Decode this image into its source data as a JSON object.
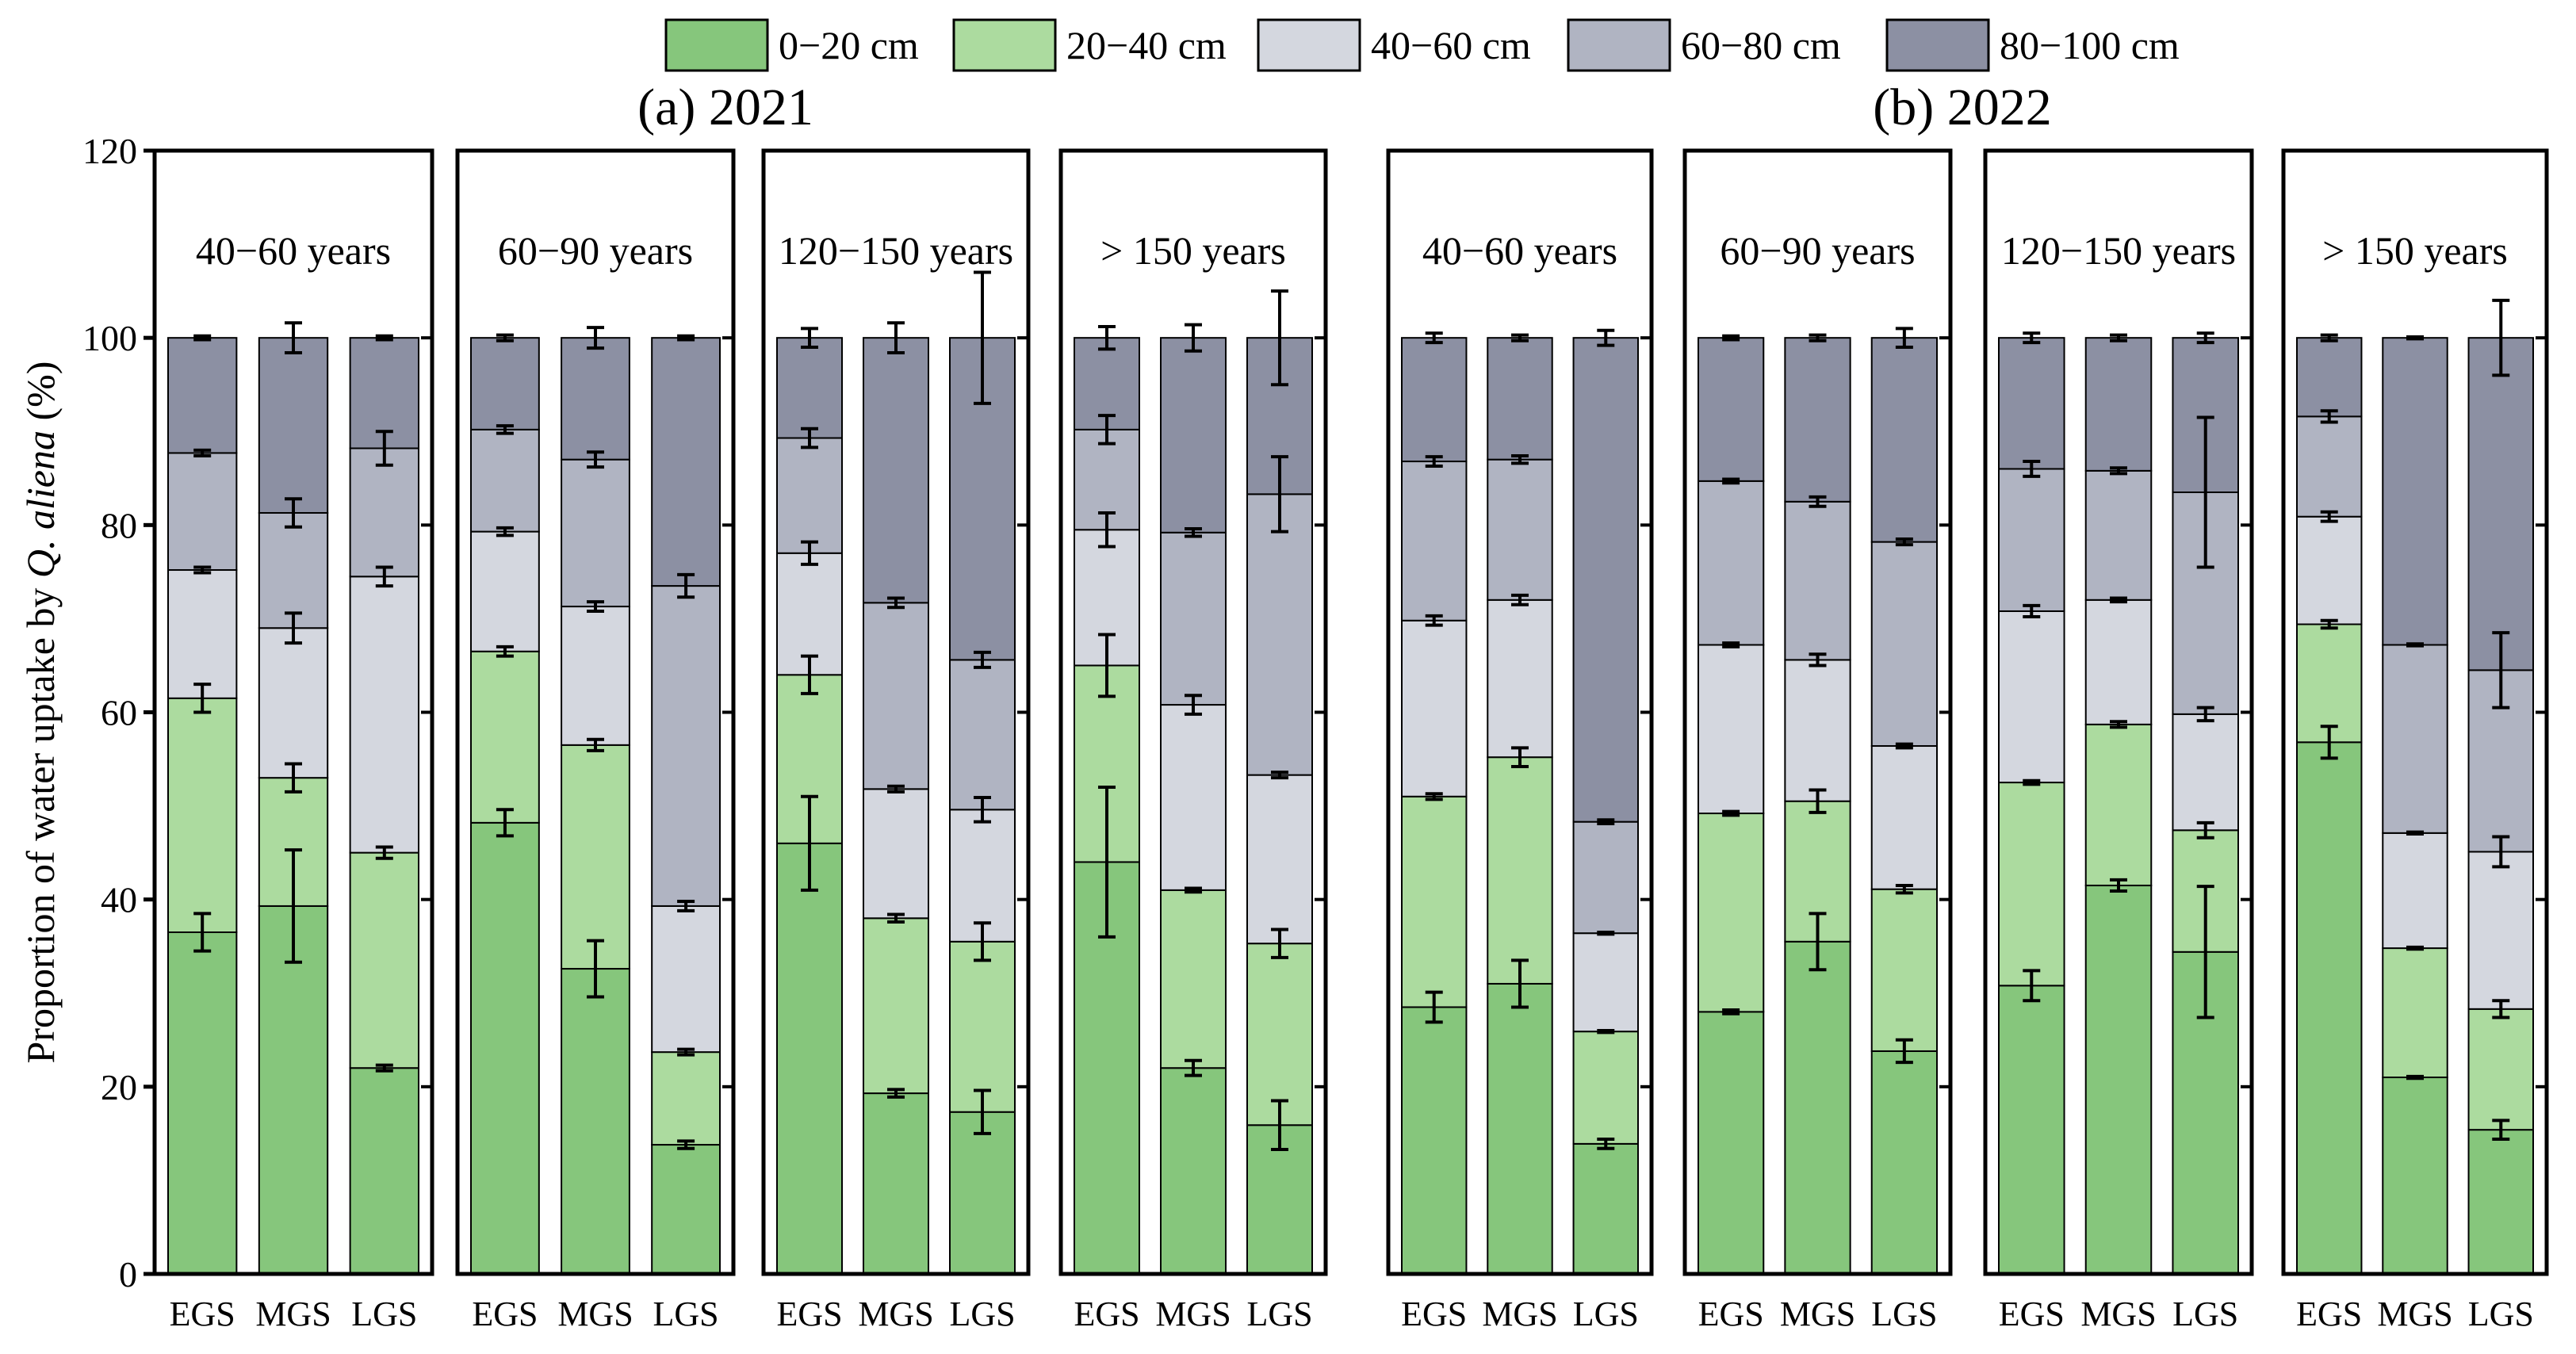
{
  "chart_data": {
    "type": "bar",
    "stacked": true,
    "ylabel_prefix": "Proportion of water uptake by ",
    "ylabel_species": "Q. aliena",
    "ylabel_suffix": " (%)",
    "ylim": [
      0,
      120
    ],
    "yticks": [
      0,
      20,
      40,
      60,
      80,
      100,
      120
    ],
    "categories": [
      "EGS",
      "MGS",
      "LGS"
    ],
    "legend_position": "top",
    "series": [
      {
        "name": "0−20 cm",
        "color": "#86c67c"
      },
      {
        "name": "20−40 cm",
        "color": "#acdb9f"
      },
      {
        "name": "40−60 cm",
        "color": "#d4d7df"
      },
      {
        "name": "60−80 cm",
        "color": "#b0b4c2"
      },
      {
        "name": "80−100 cm",
        "color": "#8c90a3"
      }
    ],
    "groups": [
      {
        "title": "(a) 2021",
        "panels": [
          {
            "label": "40−60 years",
            "bounds": [
              [
                36.5,
                61.5,
                75.2,
                87.7,
                100
              ],
              [
                39.3,
                53,
                69,
                81.3,
                100
              ],
              [
                22,
                45,
                74.5,
                88.2,
                100
              ]
            ],
            "errors": [
              [
                2,
                1.5,
                0.3,
                0.3,
                0.2
              ],
              [
                6,
                1.5,
                1.6,
                1.5,
                1.6
              ],
              [
                0.3,
                0.6,
                1,
                1.8,
                0.2
              ]
            ]
          },
          {
            "label": "60−90 years",
            "bounds": [
              [
                48.2,
                66.5,
                79.3,
                90.2,
                100
              ],
              [
                32.6,
                56.5,
                71.3,
                87,
                100
              ],
              [
                13.8,
                23.7,
                39.3,
                73.5,
                100
              ]
            ],
            "errors": [
              [
                1.4,
                0.5,
                0.4,
                0.4,
                0.3
              ],
              [
                3,
                0.6,
                0.5,
                0.8,
                1.1
              ],
              [
                0.4,
                0.3,
                0.5,
                1.2,
                0.2
              ]
            ]
          },
          {
            "label": "120−150 years",
            "bounds": [
              [
                46,
                64,
                77,
                89.3,
                100
              ],
              [
                19.3,
                38,
                51.8,
                71.7,
                100
              ],
              [
                17.3,
                35.5,
                49.6,
                65.6,
                100
              ]
            ],
            "errors": [
              [
                5,
                2,
                1.2,
                1,
                1
              ],
              [
                0.4,
                0.4,
                0.3,
                0.5,
                1.6
              ],
              [
                2.3,
                2,
                1.3,
                0.8,
                7
              ]
            ]
          },
          {
            "label": "> 150 years",
            "bounds": [
              [
                44,
                65,
                79.5,
                90.2,
                100
              ],
              [
                22,
                41,
                60.8,
                79.2,
                100
              ],
              [
                15.9,
                35.3,
                53.3,
                83.3,
                100
              ]
            ],
            "errors": [
              [
                8,
                3.3,
                1.8,
                1.5,
                1.2
              ],
              [
                0.8,
                0.2,
                1,
                0.4,
                1.4
              ],
              [
                2.6,
                1.5,
                0.3,
                4,
                5
              ]
            ]
          }
        ]
      },
      {
        "title": "(b) 2022",
        "panels": [
          {
            "label": "40−60 years",
            "bounds": [
              [
                28.5,
                51,
                69.8,
                86.8,
                100
              ],
              [
                31,
                55.2,
                72,
                87,
                100
              ],
              [
                13.9,
                25.9,
                36.4,
                48.3,
                100
              ]
            ],
            "errors": [
              [
                1.6,
                0.3,
                0.5,
                0.5,
                0.5
              ],
              [
                2.5,
                1,
                0.5,
                0.4,
                0.3
              ],
              [
                0.5,
                0.1,
                0.1,
                0.2,
                0.8
              ]
            ]
          },
          {
            "label": "60−90 years",
            "bounds": [
              [
                28,
                49.2,
                67.2,
                84.7,
                100
              ],
              [
                35.5,
                50.5,
                65.6,
                82.5,
                100
              ],
              [
                23.8,
                41.1,
                56.4,
                78.2,
                100
              ]
            ],
            "errors": [
              [
                0.2,
                0.2,
                0.2,
                0.2,
                0.2
              ],
              [
                3,
                1.2,
                0.6,
                0.5,
                0.3
              ],
              [
                1.2,
                0.4,
                0.2,
                0.3,
                1
              ]
            ]
          },
          {
            "label": "120−150 years",
            "bounds": [
              [
                30.8,
                52.5,
                70.8,
                86,
                100
              ],
              [
                41.5,
                58.7,
                72,
                85.8,
                100
              ],
              [
                34.4,
                47.4,
                59.8,
                83.5,
                100
              ]
            ],
            "errors": [
              [
                1.6,
                0.2,
                0.6,
                0.8,
                0.5
              ],
              [
                0.6,
                0.3,
                0.2,
                0.3,
                0.3
              ],
              [
                7,
                0.8,
                0.7,
                8,
                0.5
              ]
            ]
          },
          {
            "label": "> 150 years",
            "bounds": [
              [
                56.8,
                69.4,
                80.9,
                91.6,
                100
              ],
              [
                21,
                34.8,
                47.1,
                67.2,
                100
              ],
              [
                15.4,
                28.3,
                45.1,
                64.5,
                100
              ]
            ],
            "errors": [
              [
                1.7,
                0.4,
                0.5,
                0.6,
                0.3
              ],
              [
                0.1,
                0.1,
                0.1,
                0.1,
                0.1
              ],
              [
                1,
                0.9,
                1.6,
                4,
                4
              ]
            ]
          }
        ]
      }
    ]
  }
}
